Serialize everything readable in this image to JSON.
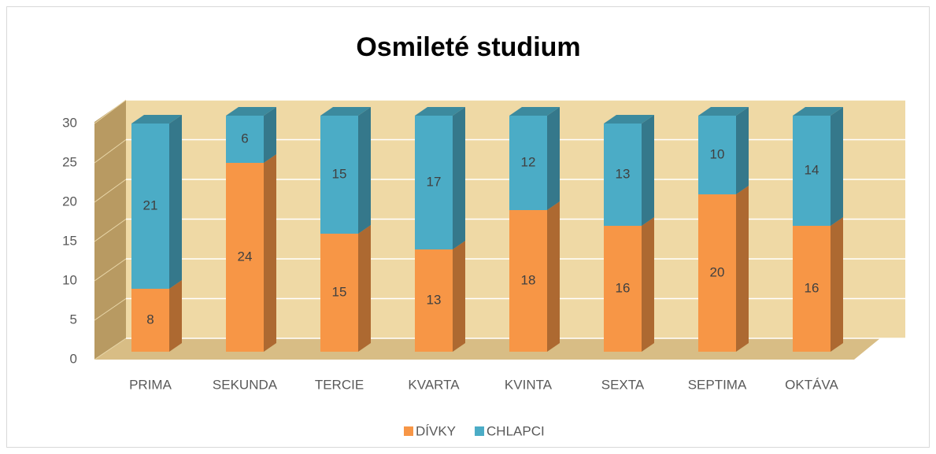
{
  "chart_data": {
    "type": "bar",
    "stacked": true,
    "title": "Osmileté studium",
    "categories": [
      "PRIMA",
      "SEKUNDA",
      "TERCIE",
      "KVARTA",
      "KVINTA",
      "SEXTA",
      "SEPTIMA",
      "OKTÁVA"
    ],
    "series": [
      {
        "name": "DÍVKY",
        "color": "#f79646",
        "values": [
          8,
          24,
          15,
          13,
          18,
          16,
          20,
          16
        ]
      },
      {
        "name": "CHLAPCI",
        "color": "#4bacc6",
        "values": [
          21,
          6,
          15,
          17,
          12,
          13,
          10,
          14
        ]
      }
    ],
    "ylim": [
      0,
      30
    ],
    "yticks": [
      0,
      5,
      10,
      15,
      20,
      25,
      30
    ],
    "grid": true,
    "legend": "bottom"
  }
}
